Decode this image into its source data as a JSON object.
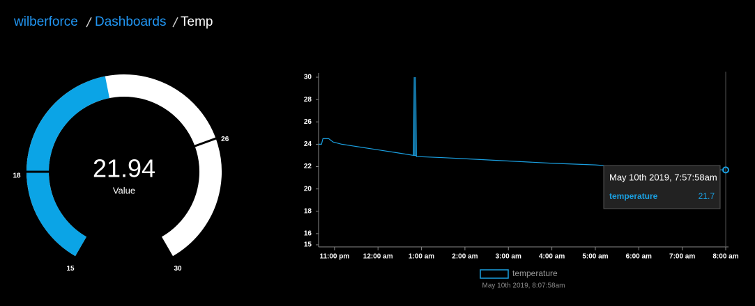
{
  "breadcrumb": [
    "wilberforce",
    "Dashboards",
    "Temp"
  ],
  "chart_data": [
    {
      "type": "gauge",
      "value": 21.94,
      "label": "Value",
      "range": [
        15,
        30
      ],
      "ticks": [
        15,
        18,
        26,
        30
      ],
      "color": "#0ba4e6",
      "track_color": "#ffffff"
    },
    {
      "type": "line",
      "x": [
        "10:38 pm",
        "10:42 pm",
        "10:44 pm",
        "10:52 pm",
        "10:58 pm",
        "11:10 pm",
        "11:30 pm",
        "12:00 am",
        "12:30 am",
        "12:49 am",
        "12:50 am",
        "12:50 am",
        "12:52 am",
        "12:52 am",
        "12:53 am",
        "1:30 am",
        "2:00 am",
        "3:00 am",
        "4:00 am",
        "5:00 am",
        "5:30 am",
        "7:58 am"
      ],
      "series": [
        {
          "name": "temperature",
          "color": "#1a9fe0",
          "values": [
            24.0,
            24.0,
            24.5,
            24.5,
            24.2,
            24.0,
            23.8,
            23.5,
            23.2,
            23.0,
            30,
            23.0,
            23.0,
            30,
            22.9,
            22.8,
            22.7,
            22.5,
            22.3,
            22.15,
            22.0,
            21.7
          ]
        }
      ],
      "xlim": [
        "10:38 pm",
        "8:00 am"
      ],
      "xticks": [
        "11:00 pm",
        "12:00 am",
        "1:00 am",
        "2:00 am",
        "3:00 am",
        "4:00 am",
        "5:00 am",
        "6:00 am",
        "7:00 am",
        "8:00 am"
      ],
      "ylim": [
        15,
        30
      ],
      "yticks": [
        15,
        16,
        18,
        20,
        22,
        24,
        26,
        28,
        30
      ],
      "legend": "bottom",
      "legend_subtitle": "May 10th 2019, 8:07:58am",
      "tooltip": {
        "title": "May 10th 2019, 7:57:58am"
      }
    }
  ]
}
